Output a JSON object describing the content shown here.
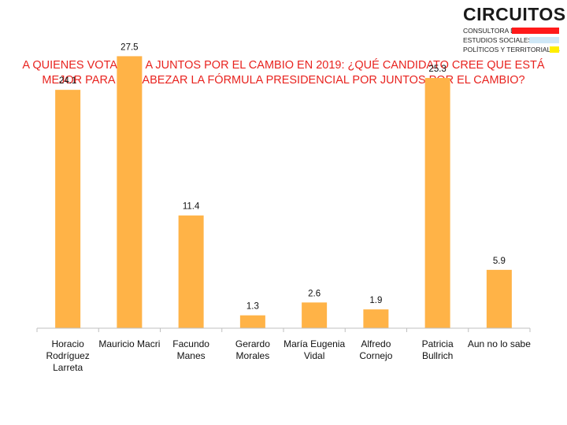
{
  "logo": {
    "name": "CIRCUITOS",
    "line1": "CONSULTORA DE",
    "line2": "ESTUDIOS SOCIALES,",
    "line3": "POLÍTICOS Y TERRITORIALES",
    "colors": [
      "#ff1a1a",
      "#cfe8f7",
      "#ffee00"
    ]
  },
  "header": {
    "title_line1": "A QUIENES VOTARON A JUNTOS POR EL CAMBIO EN 2019: ¿QUÉ CANDIDATO CREE QUE ESTÁ",
    "title_line2": "MEJOR PARA ENCABEZAR LA FÓRMULA PRESIDENCIAL POR JUNTOS POR EL CAMBIO?"
  },
  "chart_data": {
    "type": "bar",
    "title": "A QUIENES VOTARON A JUNTOS POR EL CAMBIO EN 2019: ¿QUÉ CANDIDATO CREE QUE ESTÁ MEJOR PARA ENCABEZAR LA FÓRMULA PRESIDENCIAL POR JUNTOS POR EL CAMBIO?",
    "categories": [
      [
        "Horacio",
        "Rodríguez",
        "Larreta"
      ],
      [
        "Mauricio Macri"
      ],
      [
        "Facundo",
        "Manes"
      ],
      [
        "Gerardo",
        "Morales"
      ],
      [
        "María Eugenia",
        "Vidal"
      ],
      [
        "Alfredo",
        "Cornejo"
      ],
      [
        "Patricia",
        "Bullrich"
      ],
      [
        "Aun no lo sabe"
      ]
    ],
    "values": [
      24.1,
      27.5,
      11.4,
      1.3,
      2.6,
      1.9,
      25.3,
      5.9
    ],
    "value_labels": [
      "24.1",
      "27.5",
      "11.4",
      "1.3",
      "2.6",
      "1.9",
      "25.3",
      "5.9"
    ],
    "ylim": [
      0,
      30
    ],
    "bar_color": "#ffb347",
    "axis_color": "#bfbfbf",
    "grid": false,
    "legend": false,
    "xlabel": "",
    "ylabel": ""
  }
}
